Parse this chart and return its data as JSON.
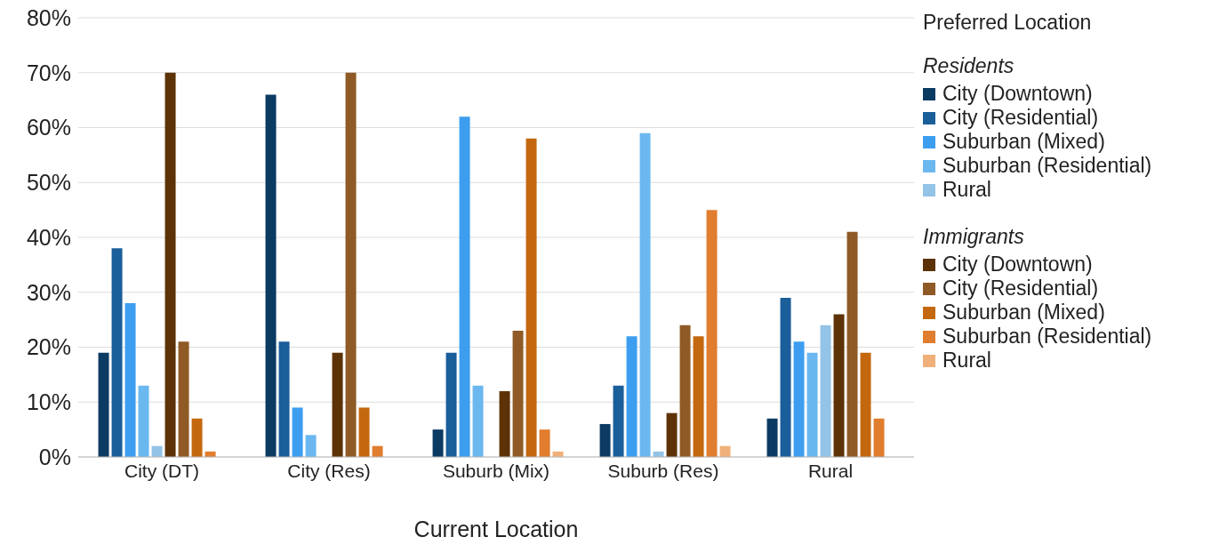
{
  "chart_data": {
    "type": "bar",
    "xlabel": "Current Location",
    "legend_title": "Preferred Location",
    "annotations": [
      "Residents",
      "Immigrants"
    ],
    "categories": [
      "City (DT)",
      "City (Res)",
      "Suburb (Mix)",
      "Suburb (Res)",
      "Rural"
    ],
    "series": [
      {
        "name": "City (Downtown)",
        "color": "#0b3a63",
        "values": [
          19,
          66,
          5,
          6,
          7
        ]
      },
      {
        "name": "City (Residential)",
        "color": "#1a5e9a",
        "values": [
          38,
          21,
          19,
          13,
          29
        ]
      },
      {
        "name": "Suburban (Mixed)",
        "color": "#3d9ef0",
        "values": [
          28,
          9,
          62,
          22,
          21
        ]
      },
      {
        "name": "Suburban (Residential)",
        "color": "#6bb8f0",
        "values": [
          13,
          4,
          13,
          59,
          19
        ]
      },
      {
        "name": "Rural",
        "color": "#94c3e8",
        "values": [
          2,
          0,
          0,
          1,
          24
        ]
      },
      {
        "name": "City (Downtown)",
        "color": "#5c3206",
        "values": [
          70,
          19,
          12,
          8,
          26
        ]
      },
      {
        "name": "City (Residential)",
        "color": "#8f5a25",
        "values": [
          21,
          70,
          23,
          24,
          41
        ]
      },
      {
        "name": "Suburban (Mixed)",
        "color": "#c4680f",
        "values": [
          7,
          9,
          58,
          22,
          19
        ]
      },
      {
        "name": "Suburban (Residential)",
        "color": "#e07d2e",
        "values": [
          1,
          2,
          5,
          45,
          7
        ]
      },
      {
        "name": "Rural",
        "color": "#f0b07a",
        "values": [
          0,
          0,
          1,
          2,
          0
        ]
      }
    ],
    "ylim": [
      0,
      80
    ],
    "yticks": [
      {
        "value": 0,
        "label": "0%"
      },
      {
        "value": 10,
        "label": "10%"
      },
      {
        "value": 20,
        "label": "20%"
      },
      {
        "value": 30,
        "label": "30%"
      },
      {
        "value": 40,
        "label": "40%"
      },
      {
        "value": 50,
        "label": "50%"
      },
      {
        "value": 60,
        "label": "60%"
      },
      {
        "value": 70,
        "label": "70%"
      },
      {
        "value": 80,
        "label": "80%"
      }
    ],
    "grid": "y",
    "legend": "right"
  }
}
